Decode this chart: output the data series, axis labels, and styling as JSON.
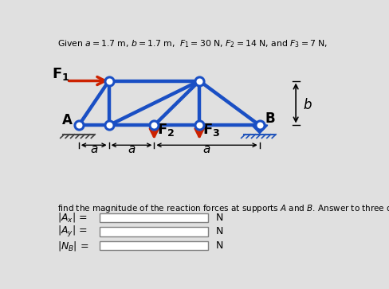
{
  "title_text": "Given $a = 1.7$ m, $b = 1.7$ m,  $F_1 = 30$ N, $F_2 = 14$ N, and $F_3 = 7$ N,",
  "truss_color": "#1a4fc4",
  "force_color": "#cc2200",
  "background": "#e0e0e0",
  "bottom_text": "find the magnitude of the reaction forces at supports $A$ and $B$. Answer to three digits.",
  "labels": [
    "|$A_x$| =",
    "|$A_y$| =",
    "|$N_B$| ="
  ],
  "unit": "N",
  "lw": 3.2,
  "A": [
    1.0,
    3.5
  ],
  "B": [
    7.0,
    3.5
  ],
  "TL": [
    2.0,
    6.2
  ],
  "TR": [
    5.0,
    6.2
  ],
  "BL": [
    2.0,
    3.5
  ],
  "BM": [
    3.5,
    3.5
  ],
  "BR": [
    5.0,
    3.5
  ],
  "xlim": [
    0,
    10
  ],
  "ylim": [
    -4.5,
    9.0
  ]
}
